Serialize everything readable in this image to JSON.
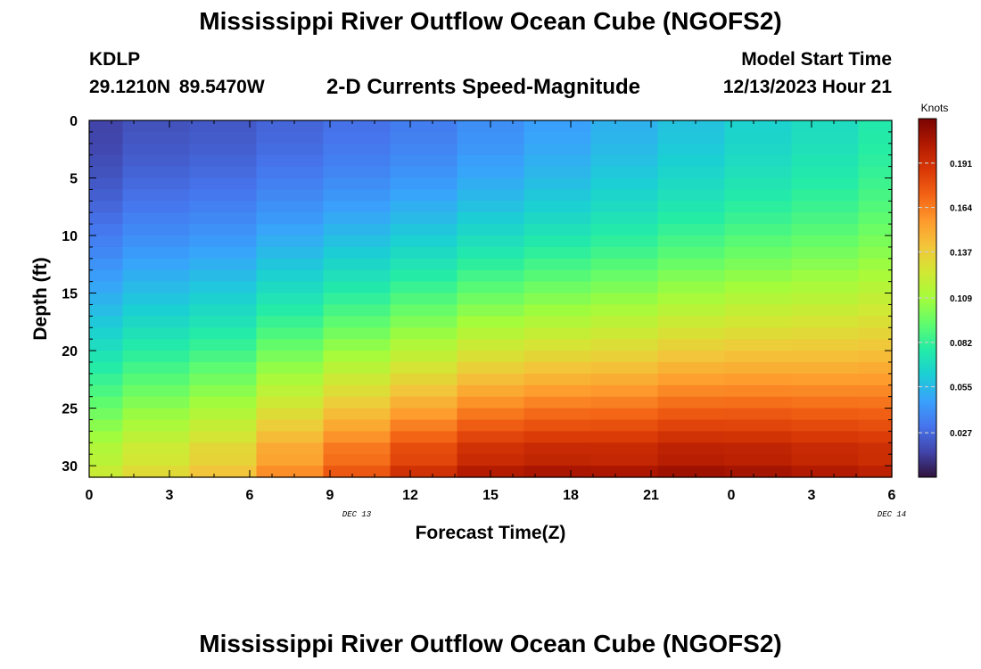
{
  "header": {
    "title": "Mississippi River Outflow Ocean Cube (NGOFS2)",
    "station_id": "KDLP",
    "station_coords": "29.1210N  89.5470W",
    "subtitle": "2-D Currents Speed-Magnitude",
    "model_label": "Model Start Time",
    "model_value": "12/13/2023 Hour 21"
  },
  "footer": {
    "title": "Mississippi River Outflow Ocean Cube (NGOFS2)"
  },
  "chart_data": {
    "type": "heatmap",
    "title": "2-D Currents Speed-Magnitude",
    "xlabel": "Forecast Time(Z)",
    "ylabel": "Depth (ft)",
    "x_tick_labels": [
      "0",
      "3",
      "6",
      "9",
      "12",
      "15",
      "18",
      "21",
      "0",
      "3",
      "6"
    ],
    "x_range_hours": [
      0,
      36
    ],
    "x_date_labels": [
      {
        "text": "DEC 13",
        "hour": 12
      },
      {
        "text": "DEC 14",
        "hour": 36
      }
    ],
    "y_ticks": [
      0,
      5,
      10,
      15,
      20,
      25,
      30
    ],
    "ylim": [
      0,
      31
    ],
    "y_inverted": true,
    "colorbar": {
      "title": "Knots",
      "ticks": [
        0.027,
        0.055,
        0.082,
        0.109,
        0.137,
        0.164,
        0.191
      ],
      "range": [
        0.0,
        0.218
      ],
      "colors": [
        "#30123b",
        "#4145ab",
        "#4675ed",
        "#39a2fc",
        "#1bcfd4",
        "#24eca6",
        "#61fc6c",
        "#a4fc3b",
        "#d1e834",
        "#f3c63a",
        "#fe9b2d",
        "#f36315",
        "#d93806",
        "#b11901",
        "#7a0402"
      ]
    },
    "time_hours": [
      0,
      1.5,
      4.5,
      7.5,
      10.5,
      13.5,
      16.5,
      19.5,
      22.5,
      25.5,
      28.5,
      31.5,
      34.5
    ],
    "depth_ft": [
      0,
      1,
      2,
      3,
      4,
      5,
      6,
      7,
      8,
      9,
      10,
      11,
      12,
      13,
      14,
      15,
      16,
      17,
      18,
      19,
      20,
      21,
      22,
      23,
      24,
      25,
      26,
      27,
      28,
      29,
      30,
      31
    ],
    "surface_speed": [
      0.015,
      0.02,
      0.022,
      0.026,
      0.03,
      0.034,
      0.04,
      0.046,
      0.052,
      0.058,
      0.064,
      0.069,
      0.076
    ],
    "bottom_speed": [
      0.128,
      0.138,
      0.148,
      0.168,
      0.185,
      0.2,
      0.212,
      0.215,
      0.214,
      0.218,
      0.216,
      0.212,
      0.208
    ],
    "profile_shape": 1.6
  }
}
